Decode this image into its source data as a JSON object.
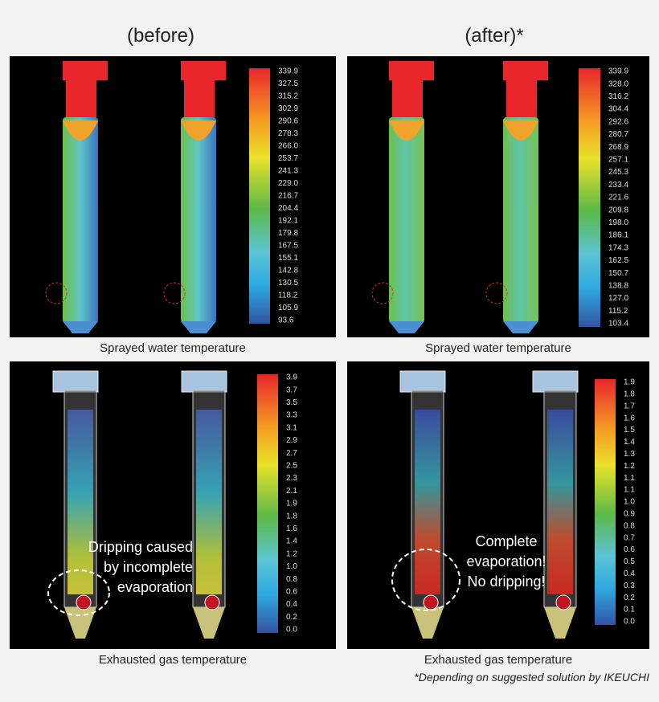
{
  "headings": {
    "before": "(before)",
    "after": "(after)*"
  },
  "panels": [
    {
      "caption": "Sprayed water temperature",
      "scale": [
        "339.9",
        "327.5",
        "315.2",
        "302.9",
        "290.6",
        "278.3",
        "266.0",
        "253.7",
        "241.3",
        "229.0",
        "216.7",
        "204.4",
        "192.1",
        "179.8",
        "167.5",
        "155.1",
        "142.8",
        "130.5",
        "118.2",
        "105.9",
        "93.6"
      ]
    },
    {
      "caption": "Sprayed water temperature",
      "scale": [
        "339.9",
        "328.0",
        "316.2",
        "304.4",
        "292.6",
        "280.7",
        "268.9",
        "257.1",
        "245.3",
        "233.4",
        "221.6",
        "209.8",
        "198.0",
        "186.1",
        "174.3",
        "162.5",
        "150.7",
        "138.8",
        "127.0",
        "115.2",
        "103.4"
      ]
    },
    {
      "caption": "Exhausted gas temperature",
      "scale": [
        "3.9",
        "3.7",
        "3.5",
        "3.3",
        "3.1",
        "2.9",
        "2.7",
        "2.5",
        "2.3",
        "2.1",
        "1.9",
        "1.8",
        "1.6",
        "1.4",
        "1.2",
        "1.0",
        "0.8",
        "0.6",
        "0.4",
        "0.2",
        "0.0"
      ],
      "annotation": [
        "Dripping caused",
        "by incomplete",
        "evaporation"
      ]
    },
    {
      "caption": "Exhausted gas temperature",
      "scale": [
        "1.9",
        "1.8",
        "1.7",
        "1.6",
        "1.5",
        "1.4",
        "1.3",
        "1.2",
        "1.1",
        "1.1",
        "1.0",
        "0.9",
        "0.8",
        "0.7",
        "0.6",
        "0.5",
        "0.4",
        "0.3",
        "0.2",
        "0.1",
        "0.0"
      ],
      "annotation": [
        "Complete",
        "evaporation!",
        "No dripping!"
      ]
    }
  ],
  "footnote": "*Depending on suggested solution by IKEUCHI"
}
